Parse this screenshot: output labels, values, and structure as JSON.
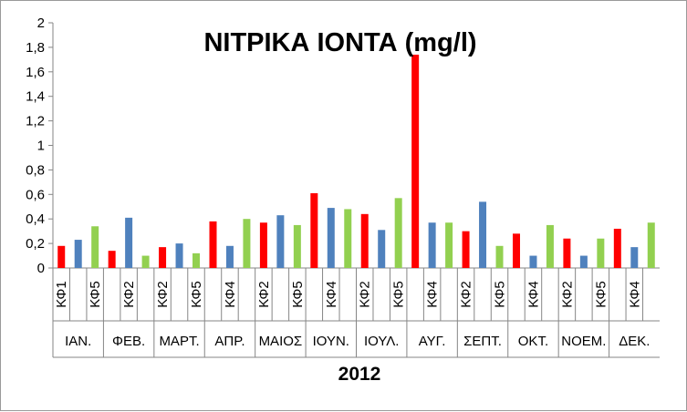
{
  "chart_data": {
    "type": "bar",
    "title": "ΝΙΤΡΙΚΑ ΙΟΝΤΑ (mg/l)",
    "xlabel": "2012",
    "ylabel": "",
    "ylim": [
      0,
      2
    ],
    "yticks": [
      "0",
      "0,2",
      "0,4",
      "0,6",
      "0,8",
      "1",
      "1,2",
      "1,4",
      "1,6",
      "1,8",
      "2"
    ],
    "grid": false,
    "legend": "none",
    "colors": [
      "#ff0000",
      "#4f81bd",
      "#92d050"
    ],
    "months": [
      {
        "label": "ΙΑΝ.",
        "slots": [
          "ΚΦ1",
          "",
          "ΚΦ5"
        ],
        "values": [
          0.18,
          0.23,
          0.34
        ]
      },
      {
        "label": "ΦΕΒ.",
        "slots": [
          "",
          "ΚΦ2",
          ""
        ],
        "values": [
          0.14,
          0.41,
          0.1
        ]
      },
      {
        "label": "ΜΑΡΤ.",
        "slots": [
          "ΚΦ2",
          "",
          "ΚΦ5"
        ],
        "values": [
          0.17,
          0.2,
          0.12
        ]
      },
      {
        "label": "ΑΠΡ.",
        "slots": [
          "",
          "ΚΦ4",
          ""
        ],
        "values": [
          0.38,
          0.18,
          0.4
        ]
      },
      {
        "label": "ΜΑΙΟΣ",
        "slots": [
          "ΚΦ2",
          "",
          "ΚΦ5"
        ],
        "values": [
          0.37,
          0.43,
          0.35
        ]
      },
      {
        "label": "ΙΟΥΝ.",
        "slots": [
          "",
          "ΚΦ4",
          ""
        ],
        "values": [
          0.61,
          0.49,
          0.48
        ]
      },
      {
        "label": "ΙΟΥΛ.",
        "slots": [
          "ΚΦ2",
          "",
          "ΚΦ5"
        ],
        "values": [
          0.44,
          0.31,
          0.57
        ]
      },
      {
        "label": "ΑΥΓ.",
        "slots": [
          "",
          "ΚΦ4",
          ""
        ],
        "values": [
          1.74,
          0.37,
          0.37
        ]
      },
      {
        "label": "ΣΕΠΤ.",
        "slots": [
          "ΚΦ2",
          "",
          "ΚΦ5"
        ],
        "values": [
          0.3,
          0.54,
          0.18
        ]
      },
      {
        "label": "ΟΚΤ.",
        "slots": [
          "",
          "ΚΦ4",
          ""
        ],
        "values": [
          0.28,
          0.1,
          0.35
        ]
      },
      {
        "label": "ΝΟΕΜ.",
        "slots": [
          "ΚΦ2",
          "",
          "ΚΦ5"
        ],
        "values": [
          0.24,
          0.1,
          0.24
        ]
      },
      {
        "label": "ΔΕΚ.",
        "slots": [
          "",
          "ΚΦ4",
          ""
        ],
        "values": [
          0.32,
          0.17,
          0.37
        ]
      }
    ]
  }
}
